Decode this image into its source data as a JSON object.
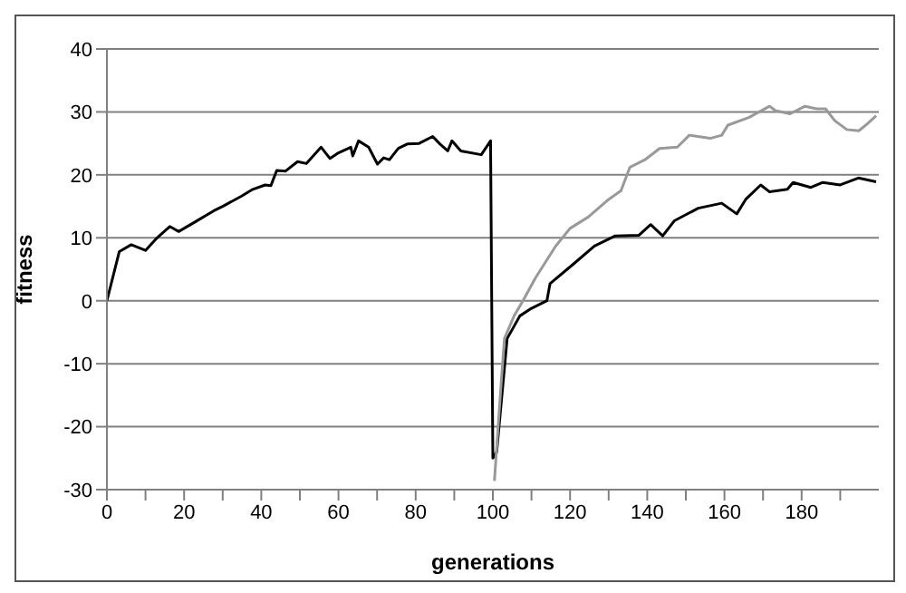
{
  "chart_data": {
    "type": "line",
    "xlabel": "generations",
    "ylabel": "fitness",
    "xlim": [
      0,
      200
    ],
    "ylim": [
      -30,
      40
    ],
    "xticks": [
      0,
      {
        "value": 10,
        "label": null
      },
      20,
      {
        "value": 30,
        "label": null
      },
      40,
      {
        "value": 50,
        "label": null
      },
      60,
      {
        "value": 70,
        "label": null
      },
      80,
      {
        "value": 90,
        "label": null
      },
      100,
      {
        "value": 110,
        "label": null
      },
      120,
      {
        "value": 130,
        "label": null
      },
      140,
      {
        "value": 150,
        "label": null
      },
      160,
      {
        "value": 170,
        "label": null
      },
      180,
      {
        "value": 190,
        "label": null
      }
    ],
    "yticks": [
      -30,
      -20,
      -10,
      0,
      10,
      20,
      30,
      40
    ],
    "grid": "y",
    "marker": "none",
    "line_style": "solid",
    "series": [
      {
        "color": "#000000",
        "x": [
          0,
          3.2,
          6.3,
          10,
          13,
          16.3,
          18.6,
          22.5,
          27.7,
          30,
          34.8,
          37.8,
          41,
          42.5,
          44,
          46.3,
          49.4,
          51.7,
          55.5,
          57.8,
          60,
          63.2,
          63.7,
          65.2,
          67.8,
          70.1,
          71.7,
          73.2,
          75.5,
          77.8,
          80.9,
          84.4,
          86.3,
          88.3,
          89.4,
          91.7,
          97,
          99.4,
          100,
          101,
          103.7,
          107,
          110,
          114,
          114.8,
          121,
          126.3,
          131.7,
          137.8,
          140.9,
          144,
          147,
          153.2,
          159.3,
          163.2,
          165.5,
          169.4,
          171.7,
          176.3,
          177.8,
          182.4,
          185.5,
          190,
          194.7,
          199.3
        ],
        "values": [
          0,
          7.8,
          8.9,
          8,
          10,
          11.8,
          11,
          12.4,
          14.3,
          15,
          16.6,
          17.7,
          18.4,
          18.3,
          20.7,
          20.6,
          22.1,
          21.8,
          24.4,
          22.6,
          23.5,
          24.4,
          23,
          25.4,
          24.4,
          21.7,
          22.7,
          22.4,
          24.2,
          24.9,
          25,
          26.1,
          24.9,
          23.8,
          25.4,
          23.8,
          23.2,
          25.4,
          -25,
          -24,
          -6,
          -2.4,
          -1.2,
          0,
          2.7,
          5.9,
          8.7,
          10.3,
          10.4,
          12.1,
          10.3,
          12.7,
          14.7,
          15.5,
          13.8,
          16.1,
          18.4,
          17.3,
          17.7,
          18.8,
          18,
          18.8,
          18.4,
          19.5,
          18.9
        ]
      },
      {
        "color": "#999999",
        "x": [
          100.4,
          102,
          103,
          105.5,
          107.8,
          111,
          116.3,
          120,
          124.7,
          130,
          133.2,
          135.5,
          139.4,
          143.2,
          147.8,
          150.9,
          156.3,
          159.3,
          160.9,
          166.3,
          171.7,
          173.2,
          177,
          180.9,
          183.9,
          186.2,
          188.6,
          191.7,
          194.8,
          197,
          199.3
        ],
        "values": [
          -28.6,
          -14.4,
          -6,
          -2.4,
          0,
          3.6,
          8.7,
          11.5,
          13.3,
          16.1,
          17.5,
          21.2,
          22.4,
          24.2,
          24.4,
          26.3,
          25.8,
          26.3,
          27.9,
          29.1,
          30.9,
          30.2,
          29.7,
          30.9,
          30.5,
          30.5,
          28.6,
          27.2,
          27,
          28.1,
          29.4
        ]
      }
    ]
  }
}
